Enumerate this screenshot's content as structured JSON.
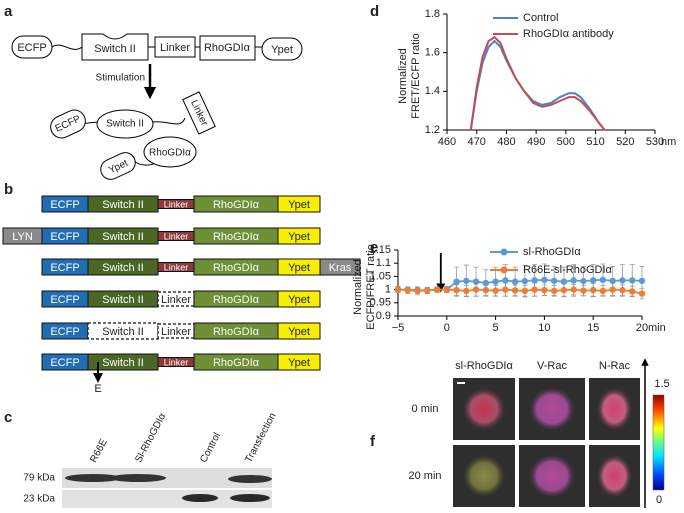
{
  "panel_labels": [
    "a",
    "b",
    "c",
    "d",
    "e",
    "f"
  ],
  "diagram": {
    "ecfp": "ECFP",
    "switch": "Switch II",
    "linker": "Linker",
    "rhogdi": "RhoGDIα",
    "ypet": "Ypet",
    "stimulation": "Stimulation"
  },
  "constructs": [
    [
      "ECFP",
      "Switch II",
      "Linker",
      "RhoGDIα",
      "Ypet"
    ],
    [
      "LYN",
      "ECFP",
      "Switch II",
      "Linker",
      "RhoGDIα",
      "Ypet"
    ],
    [
      "ECFP",
      "Switch II",
      "Linker",
      "RhoGDIα",
      "Ypet",
      "Kras"
    ],
    [
      "ECFP",
      "Switch II",
      "Linker",
      "RhoGDIα",
      "Ypet"
    ],
    [
      "ECFP",
      "Switch II",
      "Linker",
      "RhoGDIα",
      "Ypet"
    ],
    [
      "ECFP",
      "Switch II",
      "Linker",
      "RhoGDIα",
      "Ypet"
    ]
  ],
  "mutation": "E",
  "blot": {
    "lanes": [
      "R66E",
      "Sl-RhoGDIα",
      "Control",
      "Transfection"
    ],
    "markers": [
      "79 kDa",
      "23 kDa"
    ]
  },
  "imaging": {
    "columns": [
      "sl-RhoGDIα",
      "V-Rac",
      "N-Rac"
    ],
    "rows": [
      "0 min",
      "20 min"
    ],
    "colorbar_labels": [
      "1.5",
      "0"
    ]
  },
  "chart_data": [
    {
      "type": "line",
      "x_label": "nm",
      "y_label": [
        "Normalized",
        "FRET/ECFP ratio"
      ],
      "x": [
        468,
        469,
        470,
        472,
        474,
        476,
        478,
        480,
        483,
        486,
        489,
        492,
        495,
        498,
        501,
        503,
        505,
        508,
        511,
        513
      ],
      "series": [
        {
          "name": "Control",
          "color": "#4f81c7",
          "values": [
            1.2,
            1.3,
            1.4,
            1.55,
            1.63,
            1.66,
            1.63,
            1.56,
            1.47,
            1.4,
            1.35,
            1.33,
            1.34,
            1.37,
            1.39,
            1.39,
            1.37,
            1.31,
            1.24,
            1.2
          ]
        },
        {
          "name": "RhoGDIα antibody",
          "color": "#c0504d",
          "values": [
            1.2,
            1.31,
            1.42,
            1.58,
            1.66,
            1.68,
            1.65,
            1.57,
            1.47,
            1.4,
            1.34,
            1.32,
            1.33,
            1.35,
            1.37,
            1.37,
            1.35,
            1.3,
            1.24,
            1.2
          ]
        }
      ],
      "xlim": [
        460,
        530
      ],
      "ylim": [
        1.2,
        1.8
      ],
      "xticks": [
        460,
        470,
        480,
        490,
        500,
        510,
        520,
        530
      ],
      "yticks": [
        1.2,
        1.4,
        1.6,
        1.8
      ],
      "legend": "upper right"
    },
    {
      "type": "errorline",
      "x_label": "min",
      "y_label": [
        "Normalized",
        "ECFP/FRET ratio"
      ],
      "x": [
        -5,
        -4,
        -3,
        -2,
        -1,
        0,
        1,
        2,
        3,
        4,
        5,
        6,
        7,
        8,
        9,
        10,
        11,
        12,
        13,
        14,
        15,
        16,
        17,
        18,
        19,
        20
      ],
      "series": [
        {
          "name": "sl-RhoGDIα",
          "color": "#5b9bd5",
          "values": [
            1.0,
            1.0,
            0.998,
            0.997,
            1.0,
            1.0,
            1.03,
            1.033,
            1.03,
            1.025,
            1.03,
            1.035,
            1.03,
            1.032,
            1.035,
            1.037,
            1.033,
            1.03,
            1.035,
            1.032,
            1.035,
            1.037,
            1.033,
            1.035,
            1.035,
            1.033
          ],
          "errors": [
            0.01,
            0.01,
            0.012,
            0.01,
            0.01,
            0.012,
            0.055,
            0.06,
            0.055,
            0.05,
            0.055,
            0.06,
            0.055,
            0.06,
            0.06,
            0.06,
            0.055,
            0.055,
            0.06,
            0.055,
            0.06,
            0.06,
            0.055,
            0.06,
            0.06,
            0.055
          ]
        },
        {
          "name": "R66E-sl-RhoGDIα",
          "color": "#ed7d31",
          "values": [
            1.0,
            0.998,
            0.995,
            0.997,
            1.0,
            1.0,
            0.998,
            0.995,
            1.0,
            0.998,
            0.996,
            1.0,
            0.997,
            0.995,
            1.0,
            0.998,
            0.995,
            0.998,
            1.0,
            0.996,
            0.998,
            0.995,
            1.0,
            0.998,
            0.993,
            0.985
          ],
          "errors": [
            0.012,
            0.012,
            0.015,
            0.012,
            0.01,
            0.01,
            0.02,
            0.02,
            0.025,
            0.02,
            0.02,
            0.025,
            0.02,
            0.02,
            0.025,
            0.02,
            0.02,
            0.025,
            0.02,
            0.02,
            0.025,
            0.02,
            0.025,
            0.02,
            0.02,
            0.02
          ]
        }
      ],
      "xlim": [
        -5,
        20
      ],
      "ylim": [
        0.9,
        1.15
      ],
      "xticks": [
        {
          "value": -5,
          "label": "−5"
        },
        0,
        5,
        10,
        15,
        20
      ],
      "yticks": [
        0.9,
        0.95,
        1,
        1.05,
        1.1,
        1.15
      ],
      "legend": "upper center"
    }
  ]
}
